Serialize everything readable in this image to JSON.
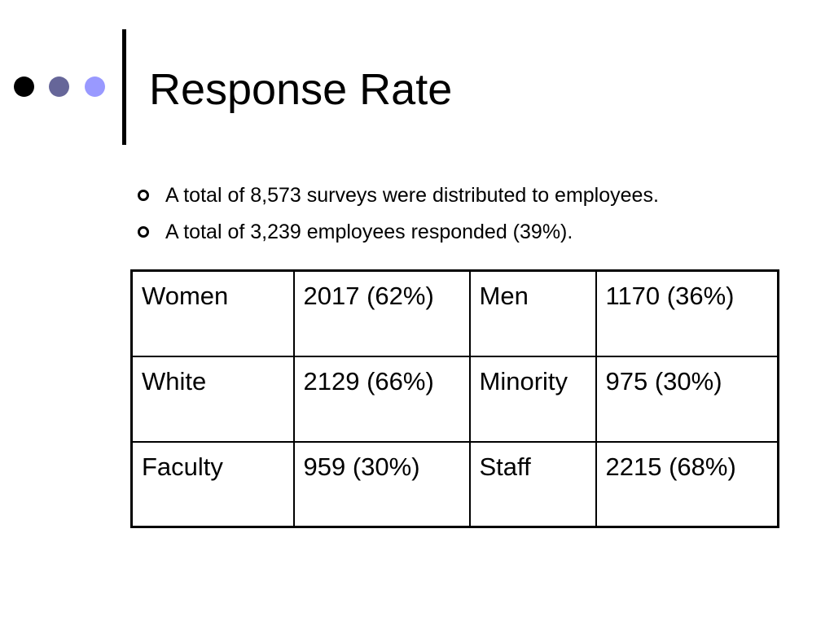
{
  "slide": {
    "title": "Response Rate",
    "decor_dot_colors": [
      "#000000",
      "#666699",
      "#9999ff"
    ],
    "bullets": [
      "A total of 8,573 surveys were distributed to employees.",
      "A total of 3,239 employees responded (39%)."
    ],
    "table": {
      "rows": [
        [
          "Women",
          "2017 (62%)",
          "Men",
          "1170 (36%)"
        ],
        [
          "White",
          "2129 (66%)",
          "Minority",
          "975 (30%)"
        ],
        [
          "Faculty",
          "959 (30%)",
          "Staff",
          "2215 (68%)"
        ]
      ]
    }
  }
}
